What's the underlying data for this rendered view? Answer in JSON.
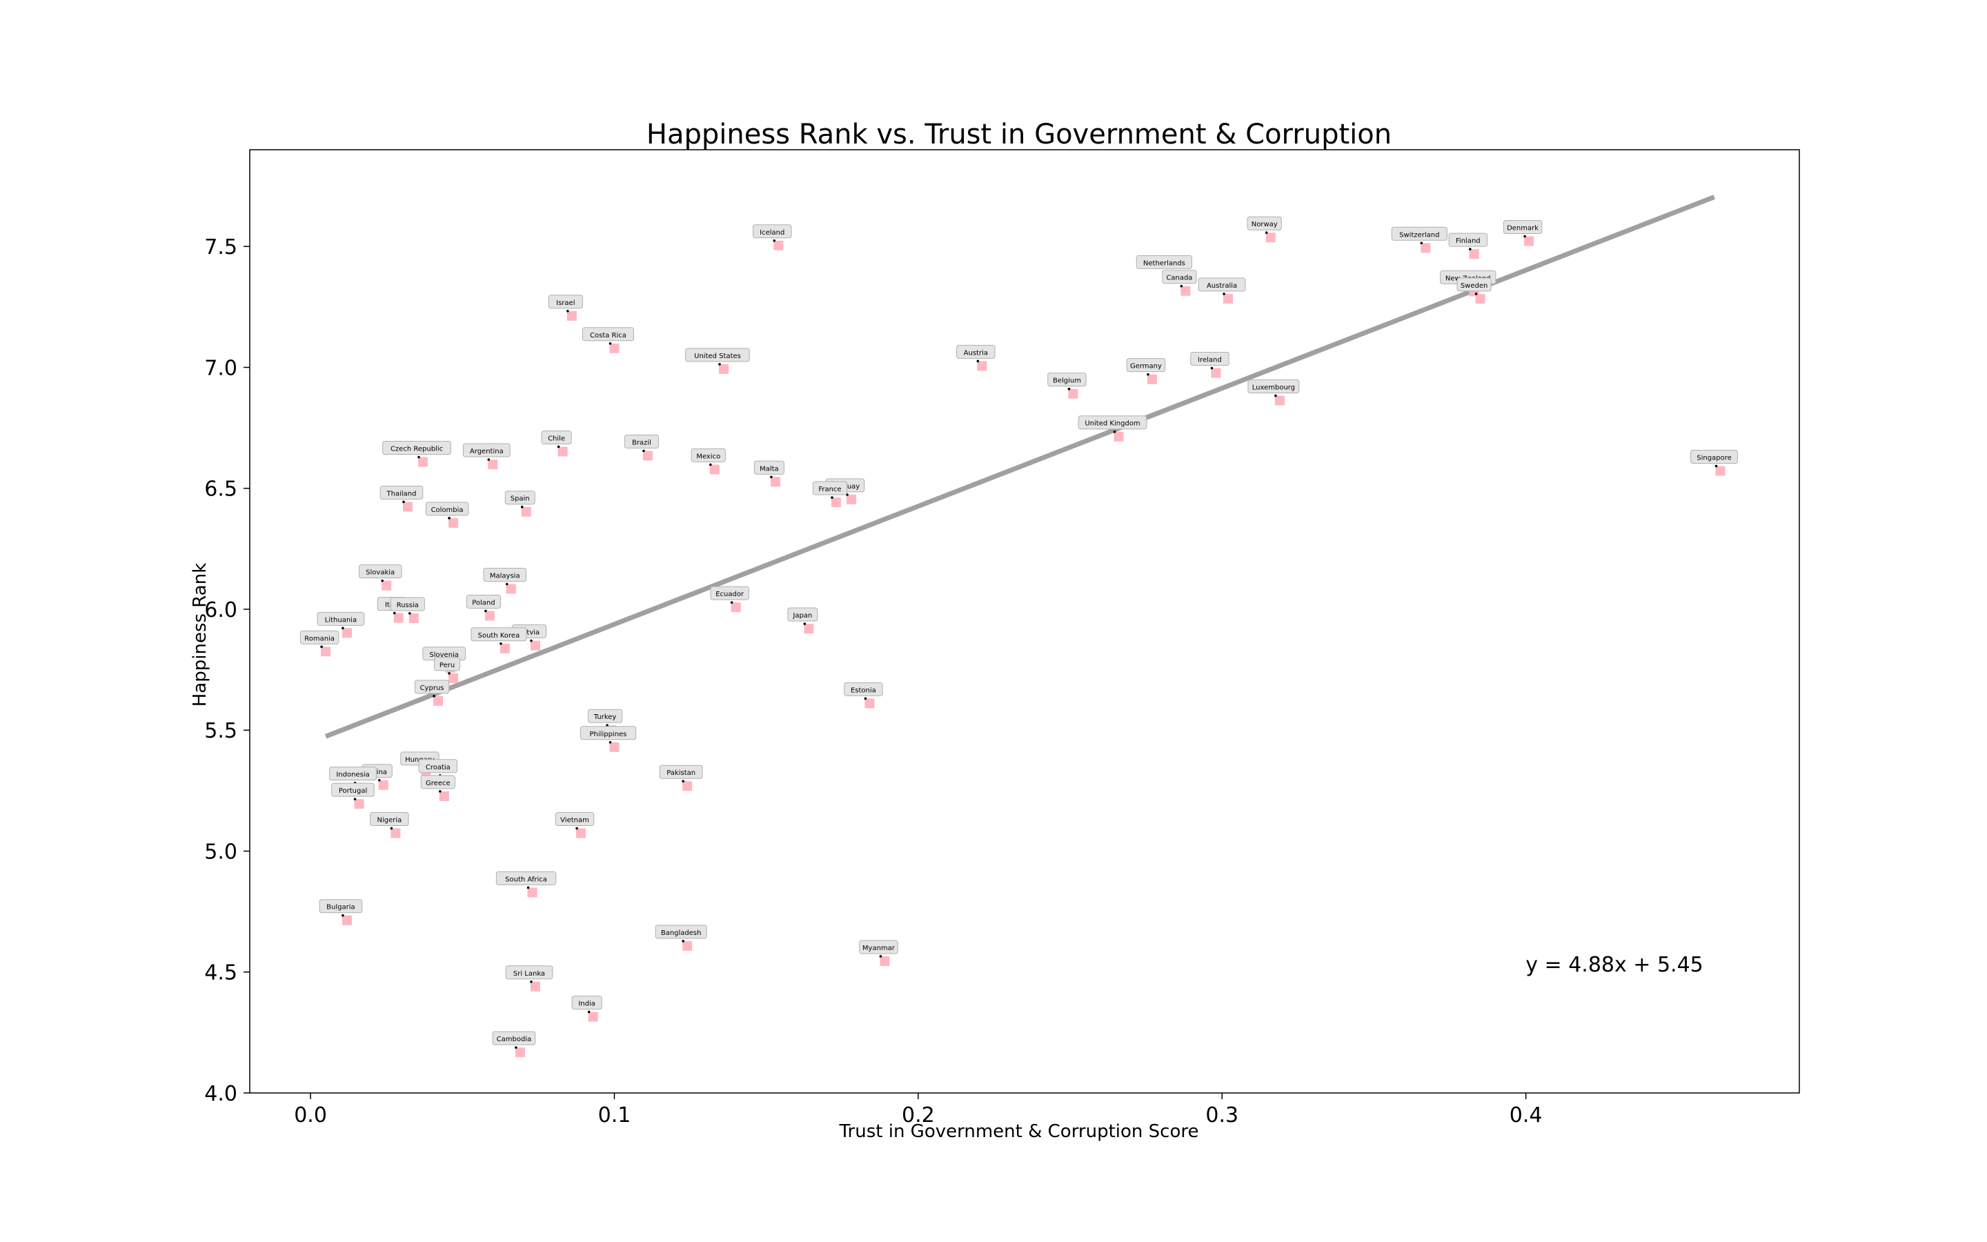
{
  "chart_data": {
    "type": "scatter",
    "title": "Happiness Rank vs. Trust in Government & Corruption",
    "xlabel": "Trust in Government & Corruption Score",
    "ylabel": "Happiness Rank",
    "xlim": [
      -0.02,
      0.49
    ],
    "ylim": [
      4.0,
      7.9
    ],
    "xticks": [
      0.0,
      0.1,
      0.2,
      0.3,
      0.4
    ],
    "xtick_labels": [
      "0.0",
      "0.1",
      "0.2",
      "0.3",
      "0.4"
    ],
    "yticks": [
      4.0,
      4.5,
      5.0,
      5.5,
      6.0,
      6.5,
      7.0,
      7.5
    ],
    "ytick_labels": [
      "4.0",
      "4.5",
      "5.0",
      "5.5",
      "6.0",
      "6.5",
      "7.0",
      "7.5"
    ],
    "grid": false,
    "marker_color": "#ffb6c1",
    "trendline": {
      "slope": 4.88,
      "intercept": 5.45,
      "x_range": [
        0.005,
        0.462
      ],
      "color": "#a0a0a0",
      "equation_label": "y = 4.88x + 5.45"
    },
    "points": [
      {
        "label": "Norway",
        "x": 0.316,
        "y": 7.537
      },
      {
        "label": "Denmark",
        "x": 0.401,
        "y": 7.522
      },
      {
        "label": "Iceland",
        "x": 0.154,
        "y": 7.504
      },
      {
        "label": "Switzerland",
        "x": 0.367,
        "y": 7.494
      },
      {
        "label": "Finland",
        "x": 0.383,
        "y": 7.469
      },
      {
        "label": "Netherlands",
        "x": 0.283,
        "y": 7.377
      },
      {
        "label": "Canada",
        "x": 0.288,
        "y": 7.316
      },
      {
        "label": "New Zealand",
        "x": 0.383,
        "y": 7.314
      },
      {
        "label": "Sweden",
        "x": 0.385,
        "y": 7.284
      },
      {
        "label": "Australia",
        "x": 0.302,
        "y": 7.284
      },
      {
        "label": "Israel",
        "x": 0.086,
        "y": 7.213
      },
      {
        "label": "Costa Rica",
        "x": 0.1,
        "y": 7.079
      },
      {
        "label": "Austria",
        "x": 0.221,
        "y": 7.006
      },
      {
        "label": "United States",
        "x": 0.136,
        "y": 6.993
      },
      {
        "label": "Ireland",
        "x": 0.298,
        "y": 6.977
      },
      {
        "label": "Germany",
        "x": 0.277,
        "y": 6.951
      },
      {
        "label": "Belgium",
        "x": 0.251,
        "y": 6.891
      },
      {
        "label": "Luxembourg",
        "x": 0.319,
        "y": 6.863
      },
      {
        "label": "United Kingdom",
        "x": 0.266,
        "y": 6.714
      },
      {
        "label": "Chile",
        "x": 0.083,
        "y": 6.652
      },
      {
        "label": "Brazil",
        "x": 0.111,
        "y": 6.635
      },
      {
        "label": "Czech Republic",
        "x": 0.037,
        "y": 6.609
      },
      {
        "label": "Argentina",
        "x": 0.06,
        "y": 6.599
      },
      {
        "label": "Singapore",
        "x": 0.464,
        "y": 6.572
      },
      {
        "label": "Mexico",
        "x": 0.133,
        "y": 6.578
      },
      {
        "label": "Malta",
        "x": 0.153,
        "y": 6.527
      },
      {
        "label": "Uruguay",
        "x": 0.178,
        "y": 6.454
      },
      {
        "label": "France",
        "x": 0.173,
        "y": 6.442
      },
      {
        "label": "Thailand",
        "x": 0.032,
        "y": 6.424
      },
      {
        "label": "Spain",
        "x": 0.071,
        "y": 6.403
      },
      {
        "label": "Colombia",
        "x": 0.047,
        "y": 6.357
      },
      {
        "label": "Slovakia",
        "x": 0.025,
        "y": 6.098
      },
      {
        "label": "Malaysia",
        "x": 0.066,
        "y": 6.084
      },
      {
        "label": "Ecuador",
        "x": 0.14,
        "y": 6.008
      },
      {
        "label": "Poland",
        "x": 0.059,
        "y": 5.973
      },
      {
        "label": "Italy",
        "x": 0.029,
        "y": 5.964
      },
      {
        "label": "Russia",
        "x": 0.034,
        "y": 5.963
      },
      {
        "label": "Japan",
        "x": 0.164,
        "y": 5.92
      },
      {
        "label": "Lithuania",
        "x": 0.012,
        "y": 5.902
      },
      {
        "label": "Latvia",
        "x": 0.074,
        "y": 5.85
      },
      {
        "label": "South Korea",
        "x": 0.064,
        "y": 5.838
      },
      {
        "label": "Romania",
        "x": 0.005,
        "y": 5.825
      },
      {
        "label": "Slovenia",
        "x": 0.046,
        "y": 5.758
      },
      {
        "label": "Peru",
        "x": 0.047,
        "y": 5.715
      },
      {
        "label": "Cyprus",
        "x": 0.042,
        "y": 5.621
      },
      {
        "label": "Estonia",
        "x": 0.184,
        "y": 5.611
      },
      {
        "label": "Turkey",
        "x": 0.099,
        "y": 5.5
      },
      {
        "label": "Philippines",
        "x": 0.1,
        "y": 5.43
      },
      {
        "label": "Hungary",
        "x": 0.038,
        "y": 5.324
      },
      {
        "label": "Croatia",
        "x": 0.044,
        "y": 5.293
      },
      {
        "label": "China",
        "x": 0.024,
        "y": 5.273
      },
      {
        "label": "Pakistan",
        "x": 0.124,
        "y": 5.269
      },
      {
        "label": "Indonesia",
        "x": 0.016,
        "y": 5.262
      },
      {
        "label": "Greece",
        "x": 0.044,
        "y": 5.227
      },
      {
        "label": "Portugal",
        "x": 0.016,
        "y": 5.195
      },
      {
        "label": "Nigeria",
        "x": 0.028,
        "y": 5.074
      },
      {
        "label": "Vietnam",
        "x": 0.089,
        "y": 5.074
      },
      {
        "label": "South Africa",
        "x": 0.073,
        "y": 4.829
      },
      {
        "label": "Bulgaria",
        "x": 0.012,
        "y": 4.714
      },
      {
        "label": "Bangladesh",
        "x": 0.124,
        "y": 4.608
      },
      {
        "label": "Myanmar",
        "x": 0.189,
        "y": 4.545
      },
      {
        "label": "Sri Lanka",
        "x": 0.074,
        "y": 4.44
      },
      {
        "label": "India",
        "x": 0.093,
        "y": 4.315
      },
      {
        "label": "Cambodia",
        "x": 0.069,
        "y": 4.168
      }
    ]
  }
}
